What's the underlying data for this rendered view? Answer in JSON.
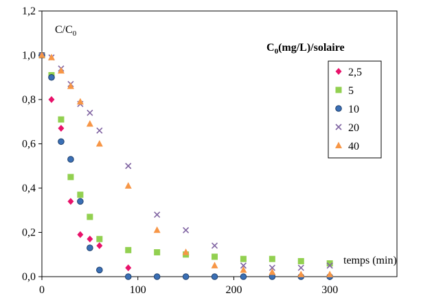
{
  "chart_data": {
    "type": "scatter",
    "ylabel": "C/C0",
    "ylabel_main": "C/C",
    "ylabel_sub": "0",
    "xlabel": "temps (min)",
    "legend_title": "C0(mg/L)/solaire",
    "legend_title_main": "C",
    "legend_title_sub": "0",
    "legend_title_rest": "(mg/L)/solaire",
    "legend_position": "right",
    "grid": false,
    "xlim": [
      0,
      370
    ],
    "ylim": [
      0,
      1.2
    ],
    "xticks": [
      0,
      100,
      200,
      300
    ],
    "xtick_labels": [
      "0",
      "100",
      "200",
      "300"
    ],
    "yticks": [
      0,
      0.2,
      0.4,
      0.6,
      0.8,
      1.0,
      1.2
    ],
    "ytick_labels": [
      "0,0",
      "0,2",
      "0,4",
      "0,6",
      "0,8",
      "1,0",
      "1,2"
    ],
    "series": [
      {
        "name": "2,5",
        "marker": "diamond",
        "color": "#e8126a",
        "x": [
          0,
          10,
          20,
          30,
          40,
          50,
          60,
          90
        ],
        "y": [
          1.0,
          0.8,
          0.67,
          0.34,
          0.19,
          0.17,
          0.14,
          0.04
        ]
      },
      {
        "name": "5",
        "marker": "square",
        "color": "#92d050",
        "x": [
          0,
          10,
          20,
          30,
          40,
          50,
          60,
          90,
          120,
          150,
          180,
          210,
          240,
          270,
          300
        ],
        "y": [
          1.0,
          0.91,
          0.71,
          0.45,
          0.37,
          0.27,
          0.17,
          0.12,
          0.11,
          0.1,
          0.09,
          0.08,
          0.08,
          0.07,
          0.06
        ]
      },
      {
        "name": "10",
        "marker": "circle",
        "color": "#3a6fb5",
        "x": [
          0,
          10,
          20,
          30,
          40,
          50,
          60,
          90,
          120,
          150,
          180,
          210,
          240,
          270,
          300
        ],
        "y": [
          1.0,
          0.9,
          0.61,
          0.53,
          0.34,
          0.13,
          0.03,
          0.0,
          0.0,
          0.0,
          0.0,
          0.0,
          0.0,
          0.0,
          0.0
        ]
      },
      {
        "name": "20",
        "marker": "x",
        "color": "#8064a2",
        "x": [
          0,
          10,
          20,
          30,
          40,
          50,
          60,
          90,
          120,
          150,
          180,
          210,
          240,
          270,
          300
        ],
        "y": [
          1.0,
          0.99,
          0.94,
          0.87,
          0.78,
          0.74,
          0.66,
          0.5,
          0.28,
          0.21,
          0.14,
          0.05,
          0.04,
          0.04,
          0.05
        ]
      },
      {
        "name": "40",
        "marker": "triangle",
        "color": "#f79646",
        "x": [
          0,
          10,
          20,
          30,
          40,
          50,
          60,
          90,
          120,
          150,
          180,
          210,
          240,
          270,
          300
        ],
        "y": [
          1.0,
          0.99,
          0.93,
          0.86,
          0.79,
          0.69,
          0.6,
          0.41,
          0.21,
          0.11,
          0.05,
          0.03,
          0.02,
          0.01,
          0.01
        ]
      }
    ]
  }
}
